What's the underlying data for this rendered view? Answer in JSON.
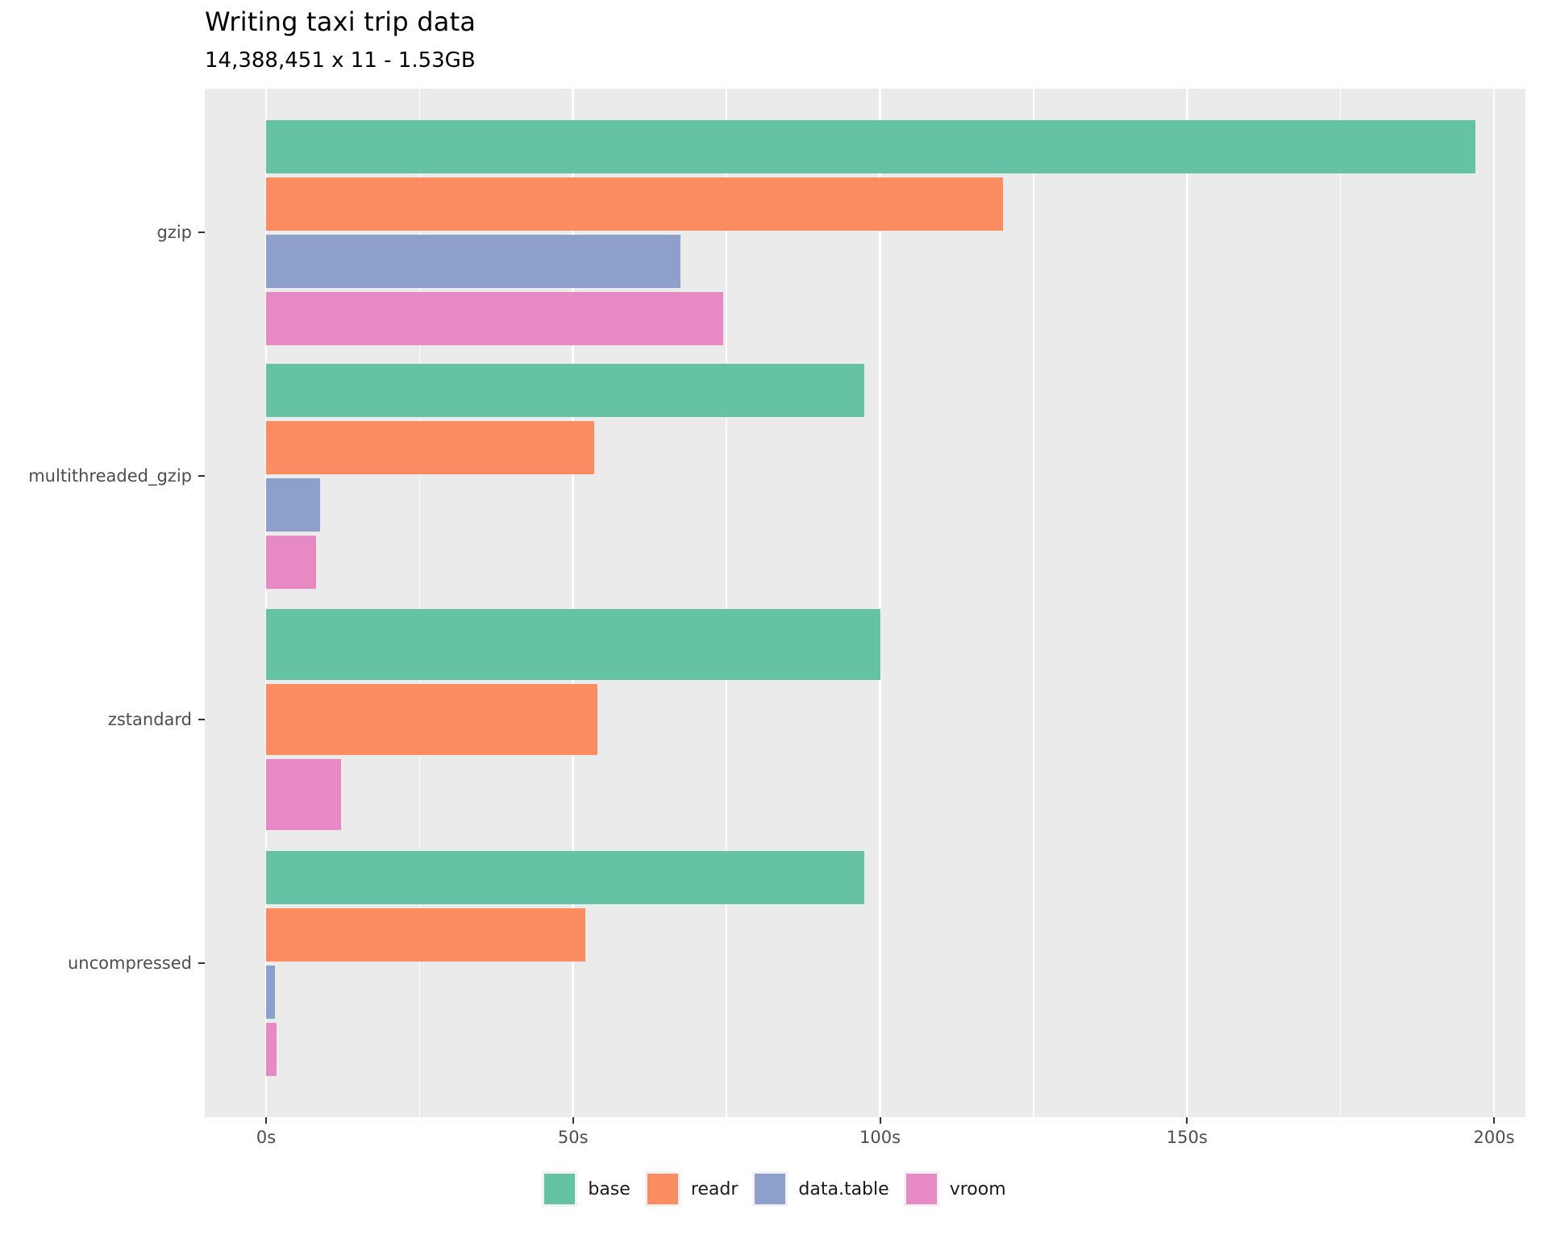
{
  "title": "Writing taxi trip data",
  "subtitle": "14,388,451 x 11 - 1.53GB",
  "chart_data": {
    "type": "bar",
    "orientation": "horizontal",
    "title": "Writing taxi trip data",
    "subtitle": "14,388,451 x 11 - 1.53GB",
    "xlabel": "",
    "ylabel": "",
    "unit": "seconds",
    "categories": [
      "gzip",
      "multithreaded_gzip",
      "zstandard",
      "uncompressed"
    ],
    "series": [
      {
        "name": "base",
        "color": "#66C2A5",
        "values": [
          197,
          97.5,
          100,
          97.5
        ]
      },
      {
        "name": "readr",
        "color": "#FC8D62",
        "values": [
          120,
          53.5,
          54,
          52
        ]
      },
      {
        "name": "data.table",
        "color": "#8DA0CB",
        "values": [
          67.5,
          8.8,
          null,
          1.5
        ]
      },
      {
        "name": "vroom",
        "color": "#E78AC3",
        "values": [
          74.5,
          8.2,
          12.2,
          1.7
        ]
      }
    ],
    "xlim": [
      0,
      200
    ],
    "x_major_ticks": [
      {
        "value": 0,
        "label": "0s"
      },
      {
        "value": 50,
        "label": "50s"
      },
      {
        "value": 100,
        "label": "100s"
      },
      {
        "value": 150,
        "label": "150s"
      },
      {
        "value": 200,
        "label": "200s"
      }
    ],
    "x_minor_ticks": [
      25,
      75,
      125,
      175
    ],
    "grid": true,
    "legend_position": "bottom",
    "legend_entries": [
      "base",
      "readr",
      "data.table",
      "vroom"
    ],
    "panel_background": "#EBEBEB",
    "gridline_color": "#FFFFFF",
    "axis_text_color": "#4D4D4D",
    "tick_mark_color": "#333333"
  }
}
